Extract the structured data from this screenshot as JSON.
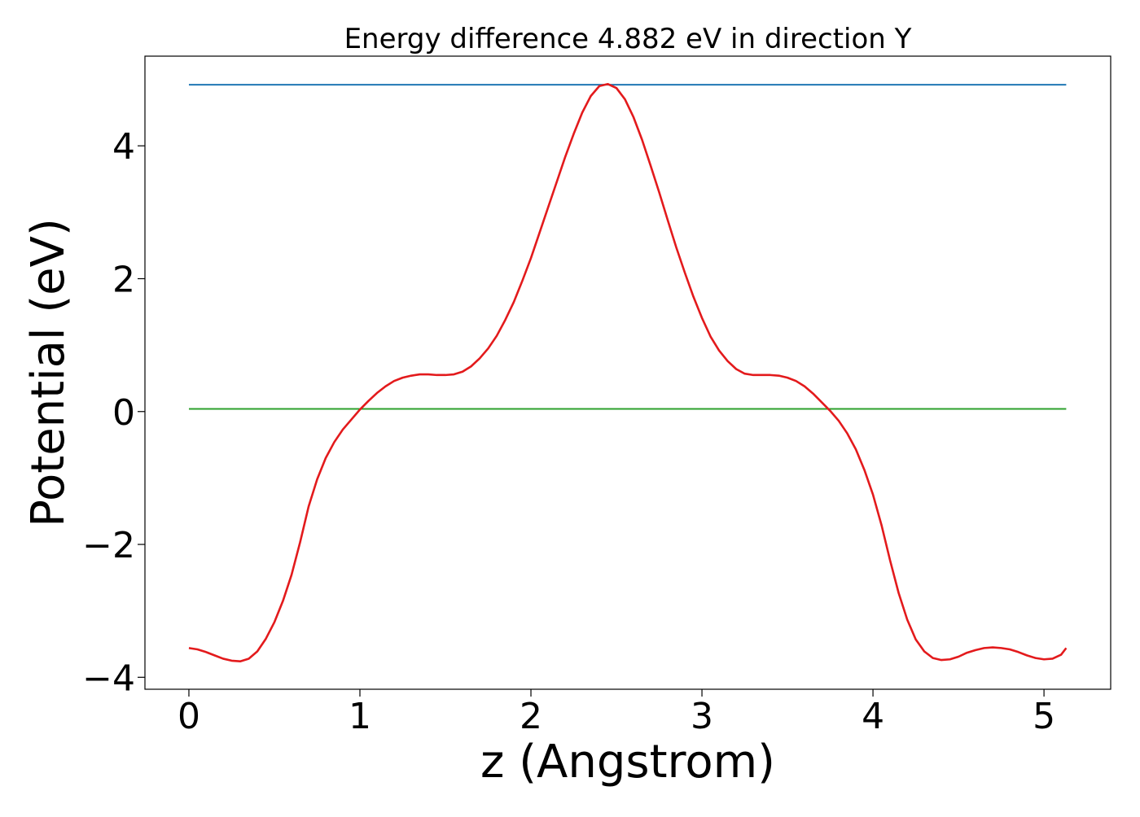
{
  "chart_data": {
    "type": "line",
    "title": "Energy difference 4.882 eV in direction Y",
    "xlabel": "z (Angstrom)",
    "ylabel": "Potential (eV)",
    "xlim": [
      -0.257,
      5.39
    ],
    "ylim": [
      -4.18,
      5.35
    ],
    "xticks": [
      {
        "value": 0,
        "label": "0"
      },
      {
        "value": 1,
        "label": "1"
      },
      {
        "value": 2,
        "label": "2"
      },
      {
        "value": 3,
        "label": "3"
      },
      {
        "value": 4,
        "label": "4"
      },
      {
        "value": 5,
        "label": "5"
      }
    ],
    "yticks": [
      {
        "value": -4,
        "label": "−4"
      },
      {
        "value": -2,
        "label": "−2"
      },
      {
        "value": 0,
        "label": "0"
      },
      {
        "value": 2,
        "label": "2"
      },
      {
        "value": 4,
        "label": "4"
      }
    ],
    "grid": false,
    "legend": "none",
    "series": [
      {
        "color": "#1f77b4",
        "x": [
          0,
          5.13
        ],
        "y": [
          4.92,
          4.92
        ]
      },
      {
        "color": "#2ca02c",
        "x": [
          0,
          5.13
        ],
        "y": [
          0.04,
          0.04
        ]
      },
      {
        "color": "#e31a1c",
        "x": [
          0.0,
          0.05,
          0.1,
          0.15,
          0.2,
          0.25,
          0.3,
          0.35,
          0.4,
          0.45,
          0.5,
          0.55,
          0.6,
          0.65,
          0.7,
          0.75,
          0.8,
          0.85,
          0.9,
          0.95,
          1.0,
          1.05,
          1.1,
          1.15,
          1.2,
          1.25,
          1.3,
          1.35,
          1.4,
          1.45,
          1.5,
          1.55,
          1.6,
          1.65,
          1.7,
          1.75,
          1.8,
          1.85,
          1.9,
          1.95,
          2.0,
          2.05,
          2.1,
          2.15,
          2.2,
          2.25,
          2.3,
          2.35,
          2.4,
          2.45,
          2.5,
          2.55,
          2.6,
          2.65,
          2.7,
          2.75,
          2.8,
          2.85,
          2.9,
          2.95,
          3.0,
          3.05,
          3.1,
          3.15,
          3.2,
          3.25,
          3.3,
          3.35,
          3.4,
          3.45,
          3.5,
          3.55,
          3.6,
          3.65,
          3.7,
          3.75,
          3.8,
          3.85,
          3.9,
          3.95,
          4.0,
          4.05,
          4.1,
          4.15,
          4.2,
          4.25,
          4.3,
          4.35,
          4.4,
          4.45,
          4.5,
          4.55,
          4.6,
          4.65,
          4.7,
          4.75,
          4.8,
          4.85,
          4.9,
          4.95,
          5.0,
          5.05,
          5.1,
          5.13
        ],
        "y": [
          -3.56,
          -3.58,
          -3.62,
          -3.67,
          -3.72,
          -3.75,
          -3.76,
          -3.72,
          -3.61,
          -3.42,
          -3.17,
          -2.85,
          -2.46,
          -1.97,
          -1.43,
          -1.02,
          -0.7,
          -0.46,
          -0.27,
          -0.12,
          0.03,
          0.16,
          0.28,
          0.38,
          0.46,
          0.51,
          0.54,
          0.56,
          0.56,
          0.55,
          0.55,
          0.56,
          0.6,
          0.68,
          0.8,
          0.95,
          1.14,
          1.38,
          1.65,
          1.97,
          2.31,
          2.69,
          3.07,
          3.45,
          3.83,
          4.18,
          4.5,
          4.75,
          4.9,
          4.93,
          4.87,
          4.7,
          4.43,
          4.09,
          3.7,
          3.3,
          2.88,
          2.47,
          2.09,
          1.73,
          1.41,
          1.13,
          0.92,
          0.76,
          0.64,
          0.57,
          0.55,
          0.55,
          0.55,
          0.54,
          0.51,
          0.46,
          0.38,
          0.27,
          0.14,
          0.01,
          -0.14,
          -0.33,
          -0.57,
          -0.88,
          -1.25,
          -1.71,
          -2.24,
          -2.73,
          -3.13,
          -3.43,
          -3.61,
          -3.71,
          -3.74,
          -3.73,
          -3.69,
          -3.63,
          -3.59,
          -3.56,
          -3.55,
          -3.56,
          -3.58,
          -3.62,
          -3.67,
          -3.71,
          -3.73,
          -3.72,
          -3.66,
          -3.56
        ]
      }
    ]
  }
}
